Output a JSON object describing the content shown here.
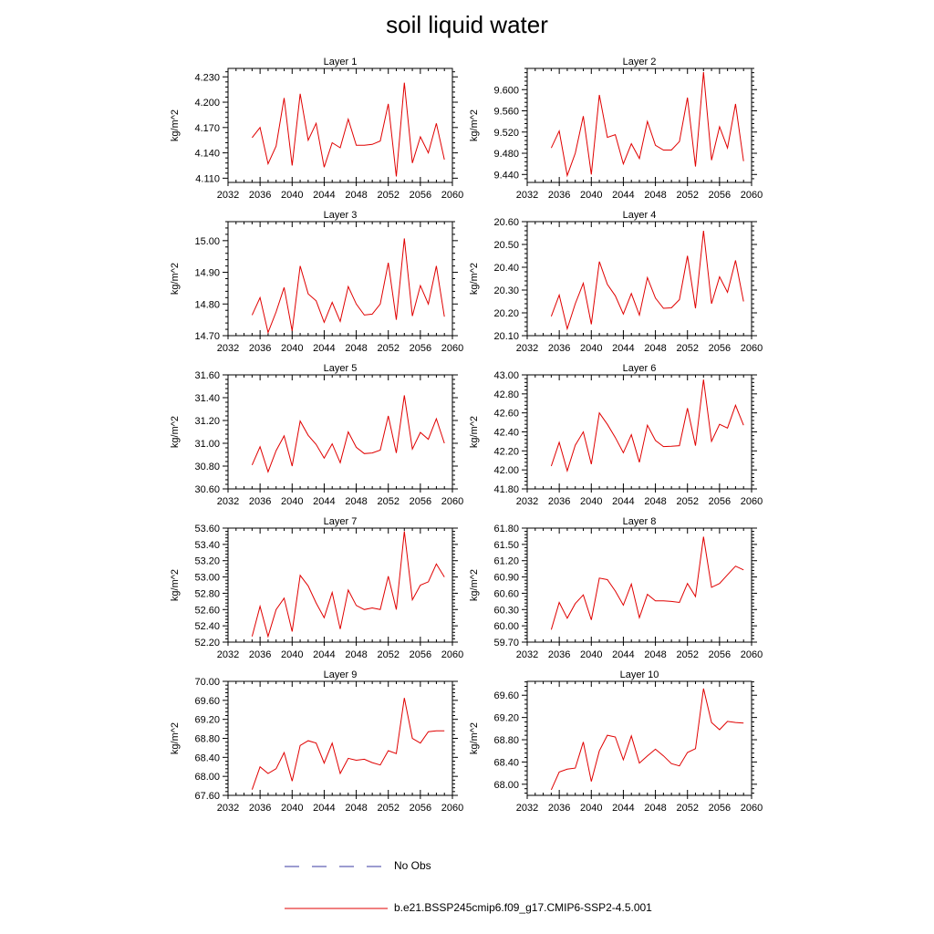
{
  "title": "soil liquid water",
  "legend": {
    "entries": [
      {
        "label": "No Obs",
        "style": "dashed",
        "color": "#3a3aa0"
      },
      {
        "label": "b.e21.BSSP245cmip6.f09_g17.CMIP6-SSP2-4.5.001",
        "style": "solid",
        "color": "#e00000"
      }
    ]
  },
  "chart_data": [
    {
      "type": "line",
      "title": "Layer 1",
      "ylabel": "kg/m^2",
      "xlim": [
        2032,
        2060
      ],
      "xticks": [
        "2032",
        "2036",
        "2040",
        "2044",
        "2048",
        "2052",
        "2056",
        "2060"
      ],
      "ylim": [
        4.105,
        4.24
      ],
      "yticks": [
        "4.110",
        "4.140",
        "4.170",
        "4.200",
        "4.230"
      ],
      "series": [
        {
          "color": "#e00000",
          "x": [
            2035,
            2036,
            2037,
            2038,
            2039,
            2040,
            2041,
            2042,
            2043,
            2044,
            2045,
            2046,
            2047,
            2048,
            2049,
            2050,
            2051,
            2052,
            2053,
            2054,
            2055,
            2056,
            2057,
            2058,
            2059
          ],
          "values": [
            4.158,
            4.17,
            4.127,
            4.148,
            4.205,
            4.125,
            4.21,
            4.155,
            4.175,
            4.123,
            4.152,
            4.146,
            4.18,
            4.149,
            4.149,
            4.15,
            4.154,
            4.198,
            4.112,
            4.223,
            4.128,
            4.159,
            4.14,
            4.175,
            4.132
          ]
        }
      ]
    },
    {
      "type": "line",
      "title": "Layer 2",
      "ylabel": "kg/m^2",
      "xlim": [
        2032,
        2060
      ],
      "xticks": [
        "2032",
        "2036",
        "2040",
        "2044",
        "2048",
        "2052",
        "2056",
        "2060"
      ],
      "ylim": [
        9.425,
        9.64
      ],
      "yticks": [
        "9.440",
        "9.480",
        "9.520",
        "9.560",
        "9.600"
      ],
      "series": [
        {
          "color": "#e00000",
          "x": [
            2035,
            2036,
            2037,
            2038,
            2039,
            2040,
            2041,
            2042,
            2043,
            2044,
            2045,
            2046,
            2047,
            2048,
            2049,
            2050,
            2051,
            2052,
            2053,
            2054,
            2055,
            2056,
            2057,
            2058,
            2059
          ],
          "values": [
            9.49,
            9.522,
            9.438,
            9.48,
            9.55,
            9.44,
            9.59,
            9.51,
            9.515,
            9.46,
            9.498,
            9.47,
            9.54,
            9.495,
            9.486,
            9.486,
            9.502,
            9.585,
            9.455,
            9.633,
            9.467,
            9.53,
            9.49,
            9.573,
            9.465
          ]
        }
      ]
    },
    {
      "type": "line",
      "title": "Layer 3",
      "ylabel": "kg/m^2",
      "xlim": [
        2032,
        2060
      ],
      "xticks": [
        "2032",
        "2036",
        "2040",
        "2044",
        "2048",
        "2052",
        "2056",
        "2060"
      ],
      "ylim": [
        14.7,
        15.06
      ],
      "yticks": [
        "14.70",
        "14.80",
        "14.90",
        "15.00"
      ],
      "series": [
        {
          "color": "#e00000",
          "x": [
            2035,
            2036,
            2037,
            2038,
            2039,
            2040,
            2041,
            2042,
            2043,
            2044,
            2045,
            2046,
            2047,
            2048,
            2049,
            2050,
            2051,
            2052,
            2053,
            2054,
            2055,
            2056,
            2057,
            2058,
            2059
          ],
          "values": [
            14.765,
            14.82,
            14.71,
            14.775,
            14.852,
            14.715,
            14.92,
            14.832,
            14.81,
            14.742,
            14.805,
            14.745,
            14.855,
            14.8,
            14.765,
            14.768,
            14.8,
            14.93,
            14.75,
            15.007,
            14.762,
            14.858,
            14.8,
            14.92,
            14.76
          ]
        }
      ]
    },
    {
      "type": "line",
      "title": "Layer 4",
      "ylabel": "kg/m^2",
      "xlim": [
        2032,
        2060
      ],
      "xticks": [
        "2032",
        "2036",
        "2040",
        "2044",
        "2048",
        "2052",
        "2056",
        "2060"
      ],
      "ylim": [
        20.1,
        20.6
      ],
      "yticks": [
        "20.10",
        "20.20",
        "20.30",
        "20.40",
        "20.50",
        "20.60"
      ],
      "series": [
        {
          "color": "#e00000",
          "x": [
            2035,
            2036,
            2037,
            2038,
            2039,
            2040,
            2041,
            2042,
            2043,
            2044,
            2045,
            2046,
            2047,
            2048,
            2049,
            2050,
            2051,
            2052,
            2053,
            2054,
            2055,
            2056,
            2057,
            2058,
            2059
          ],
          "values": [
            20.185,
            20.278,
            20.13,
            20.24,
            20.33,
            20.15,
            20.425,
            20.325,
            20.275,
            20.195,
            20.285,
            20.19,
            20.355,
            20.265,
            20.22,
            20.222,
            20.258,
            20.45,
            20.22,
            20.56,
            20.24,
            20.358,
            20.29,
            20.43,
            20.25
          ]
        }
      ]
    },
    {
      "type": "line",
      "title": "Layer 5",
      "ylabel": "kg/m^2",
      "xlim": [
        2032,
        2060
      ],
      "xticks": [
        "2032",
        "2036",
        "2040",
        "2044",
        "2048",
        "2052",
        "2056",
        "2060"
      ],
      "ylim": [
        30.6,
        31.6
      ],
      "yticks": [
        "30.60",
        "30.80",
        "31.00",
        "31.20",
        "31.40",
        "31.60"
      ],
      "series": [
        {
          "color": "#e00000",
          "x": [
            2035,
            2036,
            2037,
            2038,
            2039,
            2040,
            2041,
            2042,
            2043,
            2044,
            2045,
            2046,
            2047,
            2048,
            2049,
            2050,
            2051,
            2052,
            2053,
            2054,
            2055,
            2056,
            2057,
            2058,
            2059
          ],
          "values": [
            30.81,
            30.97,
            30.75,
            30.935,
            31.065,
            30.8,
            31.195,
            31.07,
            30.99,
            30.87,
            30.995,
            30.83,
            31.1,
            30.965,
            30.91,
            30.915,
            30.94,
            31.24,
            30.915,
            31.42,
            30.95,
            31.095,
            31.035,
            31.215,
            31.0
          ]
        }
      ]
    },
    {
      "type": "line",
      "title": "Layer 6",
      "ylabel": "kg/m^2",
      "xlim": [
        2032,
        2060
      ],
      "xticks": [
        "2032",
        "2036",
        "2040",
        "2044",
        "2048",
        "2052",
        "2056",
        "2060"
      ],
      "ylim": [
        41.8,
        43.0
      ],
      "yticks": [
        "41.80",
        "42.00",
        "42.20",
        "42.40",
        "42.60",
        "42.80",
        "43.00"
      ],
      "series": [
        {
          "color": "#e00000",
          "x": [
            2035,
            2036,
            2037,
            2038,
            2039,
            2040,
            2041,
            2042,
            2043,
            2044,
            2045,
            2046,
            2047,
            2048,
            2049,
            2050,
            2051,
            2052,
            2053,
            2054,
            2055,
            2056,
            2057,
            2058,
            2059
          ],
          "values": [
            42.04,
            42.29,
            41.99,
            42.26,
            42.4,
            42.06,
            42.6,
            42.48,
            42.34,
            42.18,
            42.37,
            42.08,
            42.47,
            42.31,
            42.245,
            42.248,
            42.255,
            42.65,
            42.255,
            42.95,
            42.3,
            42.48,
            42.44,
            42.68,
            42.47
          ]
        }
      ]
    },
    {
      "type": "line",
      "title": "Layer 7",
      "ylabel": "kg/m^2",
      "xlim": [
        2032,
        2060
      ],
      "xticks": [
        "2032",
        "2036",
        "2040",
        "2044",
        "2048",
        "2052",
        "2056",
        "2060"
      ],
      "ylim": [
        52.2,
        53.6
      ],
      "yticks": [
        "52.20",
        "52.40",
        "52.60",
        "52.80",
        "53.00",
        "53.20",
        "53.40",
        "53.60"
      ],
      "series": [
        {
          "color": "#e00000",
          "x": [
            2035,
            2036,
            2037,
            2038,
            2039,
            2040,
            2041,
            2042,
            2043,
            2044,
            2045,
            2046,
            2047,
            2048,
            2049,
            2050,
            2051,
            2052,
            2053,
            2054,
            2055,
            2056,
            2057,
            2058,
            2059
          ],
          "values": [
            52.27,
            52.64,
            52.27,
            52.6,
            52.74,
            52.33,
            53.02,
            52.89,
            52.68,
            52.5,
            52.81,
            52.36,
            52.84,
            52.65,
            52.6,
            52.62,
            52.6,
            53.01,
            52.6,
            53.56,
            52.72,
            52.9,
            52.94,
            53.16,
            53.0
          ]
        }
      ]
    },
    {
      "type": "line",
      "title": "Layer 8",
      "ylabel": "kg/m^2",
      "xlim": [
        2032,
        2060
      ],
      "xticks": [
        "2032",
        "2036",
        "2040",
        "2044",
        "2048",
        "2052",
        "2056",
        "2060"
      ],
      "ylim": [
        59.7,
        61.8
      ],
      "yticks": [
        "59.70",
        "60.00",
        "60.30",
        "60.60",
        "60.90",
        "61.20",
        "61.50",
        "61.80"
      ],
      "series": [
        {
          "color": "#e00000",
          "x": [
            2035,
            2036,
            2037,
            2038,
            2039,
            2040,
            2041,
            2042,
            2043,
            2044,
            2045,
            2046,
            2047,
            2048,
            2049,
            2050,
            2051,
            2052,
            2053,
            2054,
            2055,
            2056,
            2057,
            2058,
            2059
          ],
          "values": [
            59.93,
            60.43,
            60.14,
            60.41,
            60.57,
            60.11,
            60.88,
            60.85,
            60.64,
            60.38,
            60.77,
            60.15,
            60.58,
            60.46,
            60.46,
            60.45,
            60.43,
            60.78,
            60.54,
            61.64,
            60.71,
            60.78,
            60.94,
            61.1,
            61.03
          ]
        }
      ]
    },
    {
      "type": "line",
      "title": "Layer 9",
      "ylabel": "kg/m^2",
      "xlim": [
        2032,
        2060
      ],
      "xticks": [
        "2032",
        "2036",
        "2040",
        "2044",
        "2048",
        "2052",
        "2056",
        "2060"
      ],
      "ylim": [
        67.6,
        70.0
      ],
      "yticks": [
        "67.60",
        "68.00",
        "68.40",
        "68.80",
        "69.20",
        "69.60",
        "70.00"
      ],
      "series": [
        {
          "color": "#e00000",
          "x": [
            2035,
            2036,
            2037,
            2038,
            2039,
            2040,
            2041,
            2042,
            2043,
            2044,
            2045,
            2046,
            2047,
            2048,
            2049,
            2050,
            2051,
            2052,
            2053,
            2054,
            2055,
            2056,
            2057,
            2058,
            2059
          ],
          "values": [
            67.72,
            68.2,
            68.06,
            68.16,
            68.5,
            67.9,
            68.65,
            68.75,
            68.7,
            68.28,
            68.7,
            68.06,
            68.38,
            68.34,
            68.36,
            68.29,
            68.24,
            68.54,
            68.48,
            69.65,
            68.8,
            68.7,
            68.94,
            68.96,
            68.96
          ]
        }
      ]
    },
    {
      "type": "line",
      "title": "Layer 10",
      "ylabel": "kg/m^2",
      "xlim": [
        2032,
        2060
      ],
      "xticks": [
        "2032",
        "2036",
        "2040",
        "2044",
        "2048",
        "2052",
        "2056",
        "2060"
      ],
      "ylim": [
        67.8,
        69.85
      ],
      "yticks": [
        "68.00",
        "68.40",
        "68.80",
        "69.20",
        "69.60"
      ],
      "series": [
        {
          "color": "#e00000",
          "x": [
            2035,
            2036,
            2037,
            2038,
            2039,
            2040,
            2041,
            2042,
            2043,
            2044,
            2045,
            2046,
            2047,
            2048,
            2049,
            2050,
            2051,
            2052,
            2053,
            2054,
            2055,
            2056,
            2057,
            2058,
            2059
          ],
          "values": [
            67.9,
            68.22,
            68.27,
            68.29,
            68.76,
            68.05,
            68.6,
            68.88,
            68.85,
            68.44,
            68.87,
            68.38,
            68.51,
            68.63,
            68.51,
            68.37,
            68.33,
            68.57,
            68.64,
            69.72,
            69.11,
            68.98,
            69.13,
            69.11,
            69.1
          ]
        }
      ]
    }
  ]
}
